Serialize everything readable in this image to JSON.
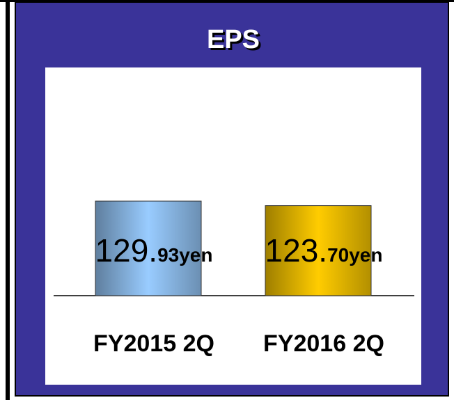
{
  "chart_data": {
    "type": "bar",
    "title": "EPS",
    "categories": [
      "FY2015 2Q",
      "FY2016 2Q"
    ],
    "values": [
      129.93,
      123.7
    ],
    "value_labels": [
      "129.93yen",
      "123.70yen"
    ],
    "colors": [
      "#99ccff",
      "#ffcc00"
    ],
    "ylim": [
      0,
      130
    ]
  }
}
